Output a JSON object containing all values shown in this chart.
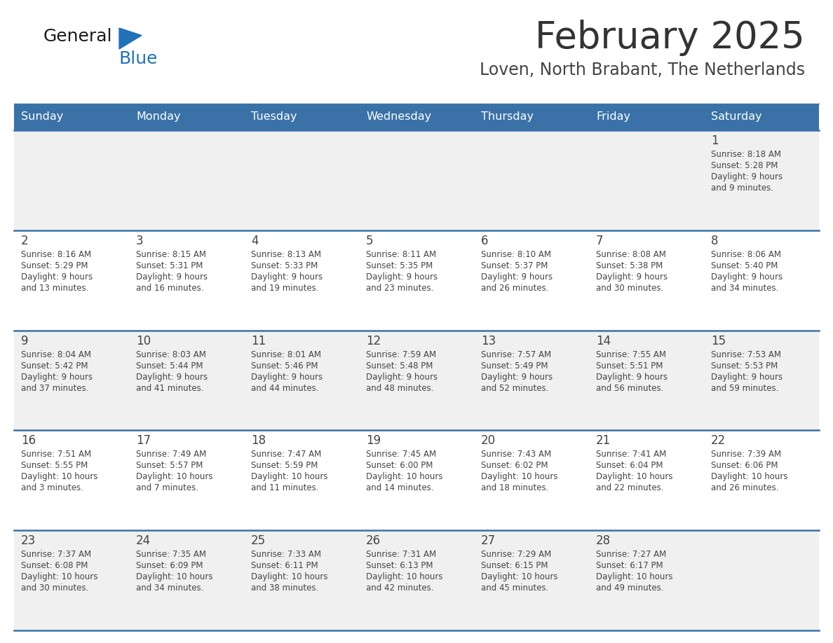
{
  "title": "February 2025",
  "subtitle": "Loven, North Brabant, The Netherlands",
  "days_of_week": [
    "Sunday",
    "Monday",
    "Tuesday",
    "Wednesday",
    "Thursday",
    "Friday",
    "Saturday"
  ],
  "header_bg": "#3a72a8",
  "header_text": "#ffffff",
  "row_bg_light": "#f0f0f0",
  "row_bg_white": "#ffffff",
  "separator_color": "#3a72a8",
  "text_color": "#444444",
  "title_color": "#333333",
  "subtitle_color": "#444444",
  "logo_general_color": "#1a1a1a",
  "logo_blue_color": "#2272b9",
  "logo_triangle_color": "#2272b9",
  "calendar_data": [
    [
      null,
      null,
      null,
      null,
      null,
      null,
      {
        "day": 1,
        "sunrise": "8:18 AM",
        "sunset": "5:28 PM",
        "daylight": "9 hours and 9 minutes."
      }
    ],
    [
      {
        "day": 2,
        "sunrise": "8:16 AM",
        "sunset": "5:29 PM",
        "daylight": "9 hours and 13 minutes."
      },
      {
        "day": 3,
        "sunrise": "8:15 AM",
        "sunset": "5:31 PM",
        "daylight": "9 hours and 16 minutes."
      },
      {
        "day": 4,
        "sunrise": "8:13 AM",
        "sunset": "5:33 PM",
        "daylight": "9 hours and 19 minutes."
      },
      {
        "day": 5,
        "sunrise": "8:11 AM",
        "sunset": "5:35 PM",
        "daylight": "9 hours and 23 minutes."
      },
      {
        "day": 6,
        "sunrise": "8:10 AM",
        "sunset": "5:37 PM",
        "daylight": "9 hours and 26 minutes."
      },
      {
        "day": 7,
        "sunrise": "8:08 AM",
        "sunset": "5:38 PM",
        "daylight": "9 hours and 30 minutes."
      },
      {
        "day": 8,
        "sunrise": "8:06 AM",
        "sunset": "5:40 PM",
        "daylight": "9 hours and 34 minutes."
      }
    ],
    [
      {
        "day": 9,
        "sunrise": "8:04 AM",
        "sunset": "5:42 PM",
        "daylight": "9 hours and 37 minutes."
      },
      {
        "day": 10,
        "sunrise": "8:03 AM",
        "sunset": "5:44 PM",
        "daylight": "9 hours and 41 minutes."
      },
      {
        "day": 11,
        "sunrise": "8:01 AM",
        "sunset": "5:46 PM",
        "daylight": "9 hours and 44 minutes."
      },
      {
        "day": 12,
        "sunrise": "7:59 AM",
        "sunset": "5:48 PM",
        "daylight": "9 hours and 48 minutes."
      },
      {
        "day": 13,
        "sunrise": "7:57 AM",
        "sunset": "5:49 PM",
        "daylight": "9 hours and 52 minutes."
      },
      {
        "day": 14,
        "sunrise": "7:55 AM",
        "sunset": "5:51 PM",
        "daylight": "9 hours and 56 minutes."
      },
      {
        "day": 15,
        "sunrise": "7:53 AM",
        "sunset": "5:53 PM",
        "daylight": "9 hours and 59 minutes."
      }
    ],
    [
      {
        "day": 16,
        "sunrise": "7:51 AM",
        "sunset": "5:55 PM",
        "daylight": "10 hours and 3 minutes."
      },
      {
        "day": 17,
        "sunrise": "7:49 AM",
        "sunset": "5:57 PM",
        "daylight": "10 hours and 7 minutes."
      },
      {
        "day": 18,
        "sunrise": "7:47 AM",
        "sunset": "5:59 PM",
        "daylight": "10 hours and 11 minutes."
      },
      {
        "day": 19,
        "sunrise": "7:45 AM",
        "sunset": "6:00 PM",
        "daylight": "10 hours and 14 minutes."
      },
      {
        "day": 20,
        "sunrise": "7:43 AM",
        "sunset": "6:02 PM",
        "daylight": "10 hours and 18 minutes."
      },
      {
        "day": 21,
        "sunrise": "7:41 AM",
        "sunset": "6:04 PM",
        "daylight": "10 hours and 22 minutes."
      },
      {
        "day": 22,
        "sunrise": "7:39 AM",
        "sunset": "6:06 PM",
        "daylight": "10 hours and 26 minutes."
      }
    ],
    [
      {
        "day": 23,
        "sunrise": "7:37 AM",
        "sunset": "6:08 PM",
        "daylight": "10 hours and 30 minutes."
      },
      {
        "day": 24,
        "sunrise": "7:35 AM",
        "sunset": "6:09 PM",
        "daylight": "10 hours and 34 minutes."
      },
      {
        "day": 25,
        "sunrise": "7:33 AM",
        "sunset": "6:11 PM",
        "daylight": "10 hours and 38 minutes."
      },
      {
        "day": 26,
        "sunrise": "7:31 AM",
        "sunset": "6:13 PM",
        "daylight": "10 hours and 42 minutes."
      },
      {
        "day": 27,
        "sunrise": "7:29 AM",
        "sunset": "6:15 PM",
        "daylight": "10 hours and 45 minutes."
      },
      {
        "day": 28,
        "sunrise": "7:27 AM",
        "sunset": "6:17 PM",
        "daylight": "10 hours and 49 minutes."
      },
      null
    ]
  ]
}
